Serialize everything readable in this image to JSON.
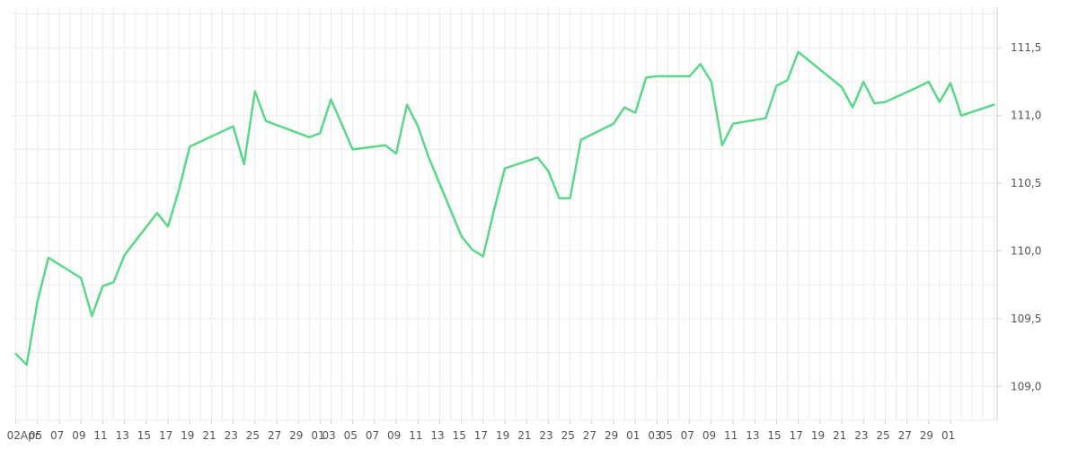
{
  "chart_data": {
    "type": "line",
    "title": "",
    "xlabel": "",
    "ylabel": "",
    "ylim": [
      108.75,
      111.8
    ],
    "y_axis_position": "right",
    "decimal_separator": ",",
    "grid": true,
    "legend": "none",
    "line_color": "#5cd68a",
    "y_ticks": [
      109.0,
      109.5,
      110.0,
      110.5,
      111.0,
      111.5
    ],
    "y_tick_labels": [
      "109,0",
      "109,5",
      "110,0",
      "110,5",
      "111,0",
      "111,5"
    ],
    "x_tick_labels": [
      "02Apr",
      "05",
      "07",
      "09",
      "11",
      "13",
      "15",
      "17",
      "19",
      "21",
      "23",
      "25",
      "27",
      "29",
      "01",
      "03",
      "05",
      "07",
      "09",
      "11",
      "13",
      "15",
      "17",
      "19",
      "21",
      "23",
      "25",
      "27",
      "29",
      "01",
      "03",
      "05",
      "07",
      "09",
      "11",
      "13",
      "15",
      "17",
      "19",
      "21",
      "23",
      "25",
      "27",
      "29",
      "01"
    ],
    "x": [
      "2024-04-02",
      "2024-04-03",
      "2024-04-04",
      "2024-04-05",
      "2024-04-08",
      "2024-04-09",
      "2024-04-10",
      "2024-04-11",
      "2024-04-12",
      "2024-04-15",
      "2024-04-16",
      "2024-04-17",
      "2024-04-18",
      "2024-04-22",
      "2024-04-23",
      "2024-04-24",
      "2024-04-25",
      "2024-04-29",
      "2024-04-30",
      "2024-05-01",
      "2024-05-03",
      "2024-05-06",
      "2024-05-07",
      "2024-05-08",
      "2024-05-09",
      "2024-05-10",
      "2024-05-13",
      "2024-05-14",
      "2024-05-15",
      "2024-05-16",
      "2024-05-17",
      "2024-05-20",
      "2024-05-21",
      "2024-05-22",
      "2024-05-23",
      "2024-05-24",
      "2024-05-27",
      "2024-05-28",
      "2024-05-29",
      "2024-05-30",
      "2024-05-31",
      "2024-06-03",
      "2024-06-04",
      "2024-06-05",
      "2024-06-06",
      "2024-06-07",
      "2024-06-10",
      "2024-06-11",
      "2024-06-12",
      "2024-06-13",
      "2024-06-17",
      "2024-06-18",
      "2024-06-19",
      "2024-06-20",
      "2024-06-21",
      "2024-06-24",
      "2024-06-25",
      "2024-06-26",
      "2024-06-27",
      "2024-06-28",
      "2024-07-01"
    ],
    "series": [
      {
        "values": [
          109.24,
          109.16,
          109.63,
          109.95,
          109.8,
          109.52,
          109.74,
          109.77,
          109.97,
          110.28,
          110.18,
          110.45,
          110.77,
          110.92,
          110.64,
          111.18,
          110.96,
          110.84,
          110.87,
          111.12,
          110.75,
          110.78,
          110.72,
          111.08,
          110.92,
          110.69,
          110.11,
          110.01,
          109.96,
          110.3,
          110.61,
          110.69,
          110.59,
          110.39,
          110.39,
          110.82,
          110.94,
          111.06,
          111.02,
          111.28,
          111.29,
          111.29,
          111.38,
          111.25,
          110.78,
          110.94,
          110.98,
          111.22,
          111.26,
          111.47,
          111.21,
          111.06,
          111.25,
          111.09,
          111.1,
          111.21,
          111.25,
          111.1,
          111.24,
          111.0,
          111.08
        ]
      }
    ]
  }
}
